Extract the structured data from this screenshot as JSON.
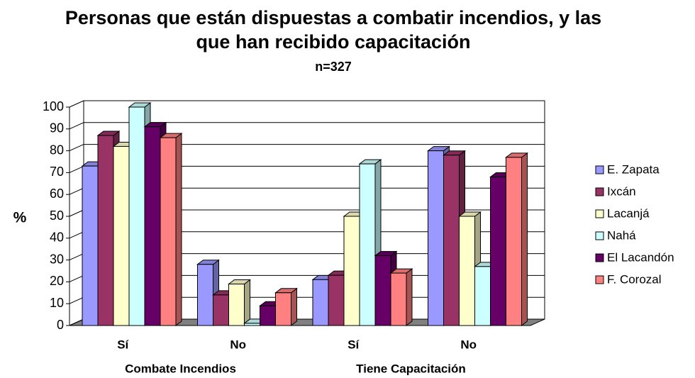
{
  "chart_data": {
    "type": "bar3d",
    "title": "Personas que están dispuestas a combatir incendios, y las que han recibido capacitación",
    "subtitle": "n=327",
    "y_label": "%",
    "categories": [
      "Sí",
      "No",
      "Sí",
      "No"
    ],
    "category_groups": [
      "Combate Incendios",
      "Tiene Capacitación"
    ],
    "series": [
      {
        "name": "E. Zapata",
        "color": "#9999ff",
        "values": [
          73,
          28,
          21,
          80
        ]
      },
      {
        "name": "Ixcán",
        "color": "#993366",
        "values": [
          87,
          14,
          23,
          78
        ]
      },
      {
        "name": "Lacanjá",
        "color": "#ffffcc",
        "values": [
          82,
          19,
          50,
          50
        ]
      },
      {
        "name": "Nahá",
        "color": "#ccffff",
        "values": [
          100,
          1,
          74,
          27
        ]
      },
      {
        "name": "El Lacandón",
        "color": "#660066",
        "values": [
          91,
          9,
          32,
          68
        ]
      },
      {
        "name": "F. Corozal",
        "color": "#ff8080",
        "values": [
          86,
          15,
          24,
          77
        ]
      }
    ],
    "ylim": [
      0,
      100
    ],
    "yticks": [
      0,
      10,
      20,
      30,
      40,
      50,
      60,
      70,
      80,
      90,
      100
    ],
    "grid": true,
    "legend": "right"
  }
}
